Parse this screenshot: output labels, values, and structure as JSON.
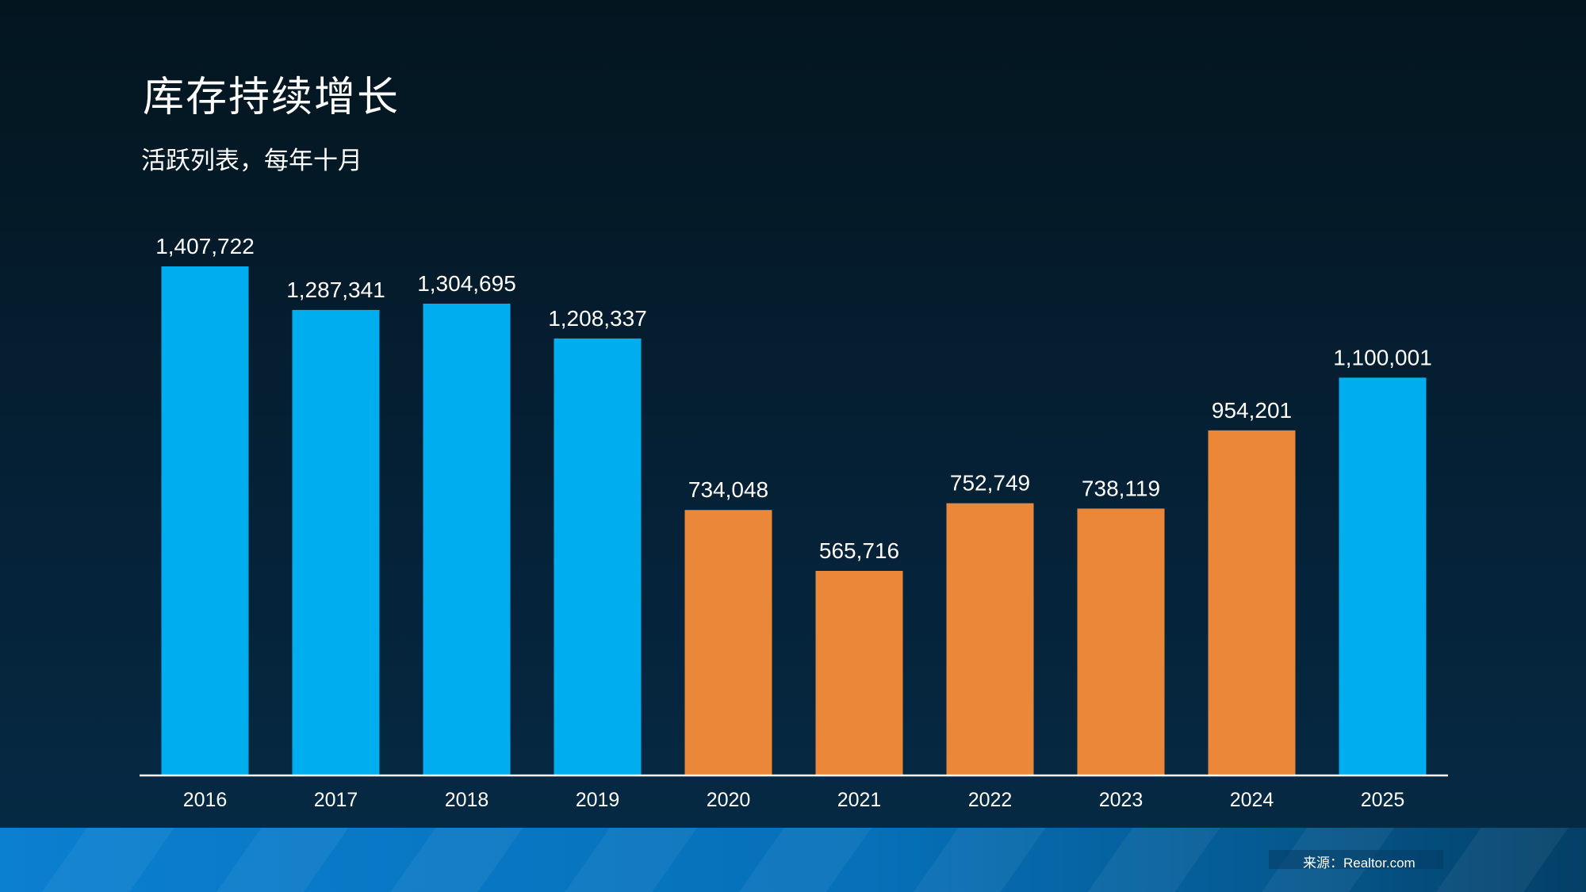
{
  "header": {
    "title": "库存持续增长",
    "subtitle": "活跃列表，每年十月"
  },
  "footer": {
    "source": "来源：Realtor.com"
  },
  "colors": {
    "blue_bar": "#00aeef",
    "orange_bar": "#ea8738",
    "axis_line": "#ffffff",
    "text": "#ffffff"
  },
  "chart_data": {
    "type": "bar",
    "title": "库存持续增长",
    "subtitle": "活跃列表，每年十月",
    "xlabel": "",
    "ylabel": "",
    "grid": false,
    "categories": [
      "2016",
      "2017",
      "2018",
      "2019",
      "2020",
      "2021",
      "2022",
      "2023",
      "2024",
      "2025"
    ],
    "values": [
      1407722,
      1287341,
      1304695,
      1208337,
      734048,
      565716,
      752749,
      738119,
      954201,
      1100001
    ],
    "value_labels": [
      "1,407,722",
      "1,287,341",
      "1,304,695",
      "1,208,337",
      "734,048",
      "565,716",
      "752,749",
      "738,119",
      "954,201",
      "1,100,001"
    ],
    "bar_colors": [
      "#00aeef",
      "#00aeef",
      "#00aeef",
      "#00aeef",
      "#ea8738",
      "#ea8738",
      "#ea8738",
      "#ea8738",
      "#ea8738",
      "#00aeef"
    ],
    "ylim": [
      0,
      1407722
    ]
  }
}
